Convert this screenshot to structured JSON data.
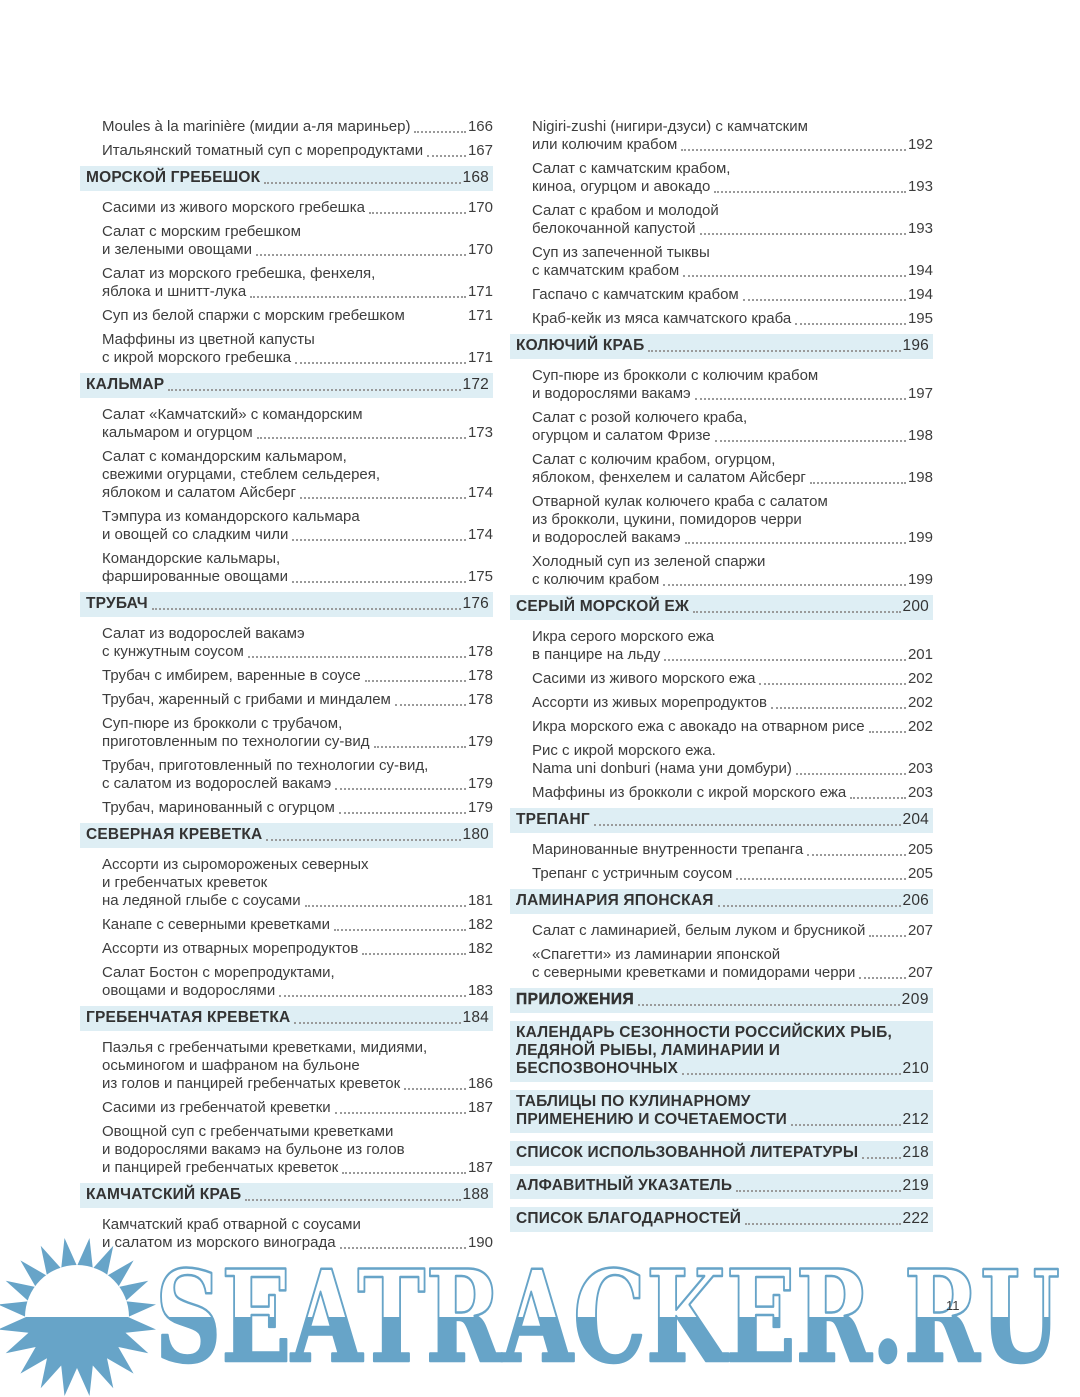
{
  "page": {
    "number": "11"
  },
  "watermark": {
    "text": "SEATRACKER.RU"
  },
  "colors": {
    "accent_blue": "#67a4c8",
    "header_bar_bg": "#deeef4",
    "body_text": "#3d3d3d",
    "leader_dots": "#9a9a9a"
  },
  "columns": [
    {
      "name": "left",
      "blocks": [
        {
          "type": "entry",
          "lines": [
            "Moules à la marinière (мидии а-ля мариньер)"
          ],
          "page": "166"
        },
        {
          "type": "entry",
          "lines": [
            "Итальянский томатный суп с морепродуктами"
          ],
          "page": "167"
        },
        {
          "type": "section",
          "lines": [
            "МОРСКОЙ ГРЕБЕШОК"
          ],
          "page": "168"
        },
        {
          "type": "entry",
          "lines": [
            "Сасими из живого морского гребешка"
          ],
          "page": "170"
        },
        {
          "type": "entry",
          "lines": [
            "Салат с морским гребешком",
            "и зелеными овощами"
          ],
          "page": "170"
        },
        {
          "type": "entry",
          "lines": [
            "Салат из морского гребешка, фенхеля,",
            "яблока и шнитт-лука"
          ],
          "page": "171"
        },
        {
          "type": "entry",
          "lines": [
            "Суп из белой спаржи с морским гребешком"
          ],
          "page": "171",
          "leader": false
        },
        {
          "type": "entry",
          "lines": [
            "Маффины из цветной капусты",
            "с икрой морского гребешка"
          ],
          "page": "171"
        },
        {
          "type": "section",
          "lines": [
            "КАЛЬМАР"
          ],
          "page": "172"
        },
        {
          "type": "entry",
          "lines": [
            "Салат «Камчатский» с командорским",
            "кальмаром и огурцом"
          ],
          "page": "173"
        },
        {
          "type": "entry",
          "lines": [
            "Салат с командорским кальмаром,",
            "свежими огурцами, стеблем сельдерея,",
            "яблоком и салатом Айсберг"
          ],
          "page": "174"
        },
        {
          "type": "entry",
          "lines": [
            "Тэмпура из командорского кальмара",
            "и овощей со сладким чили"
          ],
          "page": "174"
        },
        {
          "type": "entry",
          "lines": [
            "Командорские кальмары,",
            "фаршированные овощами"
          ],
          "page": "175"
        },
        {
          "type": "section",
          "lines": [
            "ТРУБАЧ"
          ],
          "page": "176"
        },
        {
          "type": "entry",
          "lines": [
            "Салат из водорослей вакамэ",
            "с кунжутным соусом"
          ],
          "page": "178"
        },
        {
          "type": "entry",
          "lines": [
            "Трубач с имбирем, варенные в соусе"
          ],
          "page": "178"
        },
        {
          "type": "entry",
          "lines": [
            "Трубач, жаренный с грибами и миндалем"
          ],
          "page": "178"
        },
        {
          "type": "entry",
          "lines": [
            "Суп-пюре из брокколи с трубачом,",
            "приготовленным по технологии су-вид"
          ],
          "page": "179"
        },
        {
          "type": "entry",
          "lines": [
            "Трубач, приготовленный по технологии су-вид,",
            "с салатом из водорослей вакамэ"
          ],
          "page": "179"
        },
        {
          "type": "entry",
          "lines": [
            "Трубач, маринованный с огурцом"
          ],
          "page": "179"
        },
        {
          "type": "section",
          "lines": [
            "СЕВЕРНАЯ КРЕВЕТКА"
          ],
          "page": "180"
        },
        {
          "type": "entry",
          "lines": [
            "Ассорти из сыромороженых северных",
            "и гребенчатых креветок",
            "на ледяной глыбе с соусами"
          ],
          "page": "181"
        },
        {
          "type": "entry",
          "lines": [
            "Канапе с северными креветками"
          ],
          "page": "182"
        },
        {
          "type": "entry",
          "lines": [
            "Ассорти из отварных морепродуктов"
          ],
          "page": "182"
        },
        {
          "type": "entry",
          "lines": [
            "Салат Бостон с морепродуктами,",
            "овощами и водорослями"
          ],
          "page": "183"
        },
        {
          "type": "section",
          "lines": [
            "ГРЕБЕНЧАТАЯ КРЕВЕТКА"
          ],
          "page": "184"
        },
        {
          "type": "entry",
          "lines": [
            "Паэлья с гребенчатыми креветками, мидиями,",
            "осьминогом и шафраном на бульоне",
            "из голов и панцирей гребенчатых креветок"
          ],
          "page": "186"
        },
        {
          "type": "entry",
          "lines": [
            "Сасими из гребенчатой креветки"
          ],
          "page": "187"
        },
        {
          "type": "entry",
          "lines": [
            "Овощной суп с гребенчатыми креветками",
            "и водорослями вакамэ на бульоне из голов",
            "и панцирей гребенчатых креветок"
          ],
          "page": "187"
        },
        {
          "type": "section",
          "lines": [
            "КАМЧАТСКИЙ КРАБ"
          ],
          "page": "188"
        },
        {
          "type": "entry",
          "lines": [
            "Камчатский краб отварной с соусами",
            "и салатом из морского винограда"
          ],
          "page": "190"
        }
      ]
    },
    {
      "name": "right",
      "blocks": [
        {
          "type": "entry",
          "lines": [
            "Nigiri-zushi (нигири-дзуси) с камчатским",
            "или колючим крабом"
          ],
          "page": "192"
        },
        {
          "type": "entry",
          "lines": [
            "Салат с камчатским крабом,",
            "киноа, огурцом и авокадо"
          ],
          "page": "193"
        },
        {
          "type": "entry",
          "lines": [
            "Салат с крабом и молодой",
            "белокочанной капустой"
          ],
          "page": "193"
        },
        {
          "type": "entry",
          "lines": [
            "Суп из запеченной тыквы",
            "с камчатским крабом"
          ],
          "page": "194"
        },
        {
          "type": "entry",
          "lines": [
            "Гаспачо с камчатским крабом"
          ],
          "page": "194"
        },
        {
          "type": "entry",
          "lines": [
            "Краб-кейк из мяса камчатского краба"
          ],
          "page": "195"
        },
        {
          "type": "section",
          "lines": [
            "КОЛЮЧИЙ КРАБ"
          ],
          "page": "196"
        },
        {
          "type": "entry",
          "lines": [
            "Суп-пюре из брокколи с колючим крабом",
            "и водорослями вакамэ"
          ],
          "page": "197"
        },
        {
          "type": "entry",
          "lines": [
            "Салат с розой колючего краба,",
            "огурцом и салатом Фризе"
          ],
          "page": "198"
        },
        {
          "type": "entry",
          "lines": [
            "Салат с колючим крабом, огурцом,",
            "яблоком, фенхелем и салатом Айсберг"
          ],
          "page": "198"
        },
        {
          "type": "entry",
          "lines": [
            "Отварной кулак колючего краба с салатом",
            "из брокколи, цукини, помидоров черри",
            "и водорослей вакамэ"
          ],
          "page": "199"
        },
        {
          "type": "entry",
          "lines": [
            "Холодный суп из зеленой спаржи",
            "с колючим крабом"
          ],
          "page": "199"
        },
        {
          "type": "section",
          "lines": [
            "СЕРЫЙ МОРСКОЙ ЕЖ"
          ],
          "page": "200"
        },
        {
          "type": "entry",
          "lines": [
            "Икра серого морского ежа",
            "в панцире на льду"
          ],
          "page": "201"
        },
        {
          "type": "entry",
          "lines": [
            "Сасими из живого морского ежа"
          ],
          "page": "202"
        },
        {
          "type": "entry",
          "lines": [
            "Ассорти из живых морепродуктов"
          ],
          "page": "202"
        },
        {
          "type": "entry",
          "lines": [
            "Икра морского ежа с авокадо на отварном рисе"
          ],
          "page": "202"
        },
        {
          "type": "entry",
          "lines": [
            "Рис с икрой морского ежа.",
            "Nama uni donburi (нама уни домбури)"
          ],
          "page": "203"
        },
        {
          "type": "entry",
          "lines": [
            "Маффины из брокколи с икрой морского ежа"
          ],
          "page": "203"
        },
        {
          "type": "section",
          "lines": [
            "ТРЕПАНГ"
          ],
          "page": "204"
        },
        {
          "type": "entry",
          "lines": [
            "Маринованные внутренности трепанга"
          ],
          "page": "205"
        },
        {
          "type": "entry",
          "lines": [
            "Трепанг с устричным соусом"
          ],
          "page": "205"
        },
        {
          "type": "section",
          "lines": [
            "ЛАМИНАРИЯ ЯПОНСКАЯ"
          ],
          "page": "206"
        },
        {
          "type": "entry",
          "lines": [
            "Салат с ламинарией, белым луком и брусникой"
          ],
          "page": "207"
        },
        {
          "type": "entry",
          "lines": [
            "«Спагетти» из ламинарии японской",
            "с северными креветками и помидорами черри"
          ],
          "page": "207"
        },
        {
          "type": "section",
          "bold": true,
          "lines": [
            "ПРИЛОЖЕНИЯ"
          ],
          "page": "209"
        },
        {
          "type": "section",
          "lines": [
            "КАЛЕНДАРЬ СЕЗОННОСТИ РОССИЙСКИХ РЫБ,",
            "ЛЕДЯНОЙ РЫБЫ, ЛАМИНАРИИ И",
            "БЕСПОЗВОНОЧНЫХ"
          ],
          "page": "210"
        },
        {
          "type": "section",
          "lines": [
            "ТАБЛИЦЫ ПО КУЛИНАРНОМУ",
            "ПРИМЕНЕНИЮ И СОЧЕТАЕМОСТИ"
          ],
          "page": "212"
        },
        {
          "type": "section",
          "lines": [
            "СПИСОК ИСПОЛЬЗОВАННОЙ ЛИТЕРАТУРЫ"
          ],
          "page": "218"
        },
        {
          "type": "section",
          "lines": [
            "АЛФАВИТНЫЙ УКАЗАТЕЛЬ"
          ],
          "page": "219"
        },
        {
          "type": "section",
          "lines": [
            "СПИСОК БЛАГОДАРНОСТЕЙ"
          ],
          "page": "222"
        }
      ]
    }
  ]
}
